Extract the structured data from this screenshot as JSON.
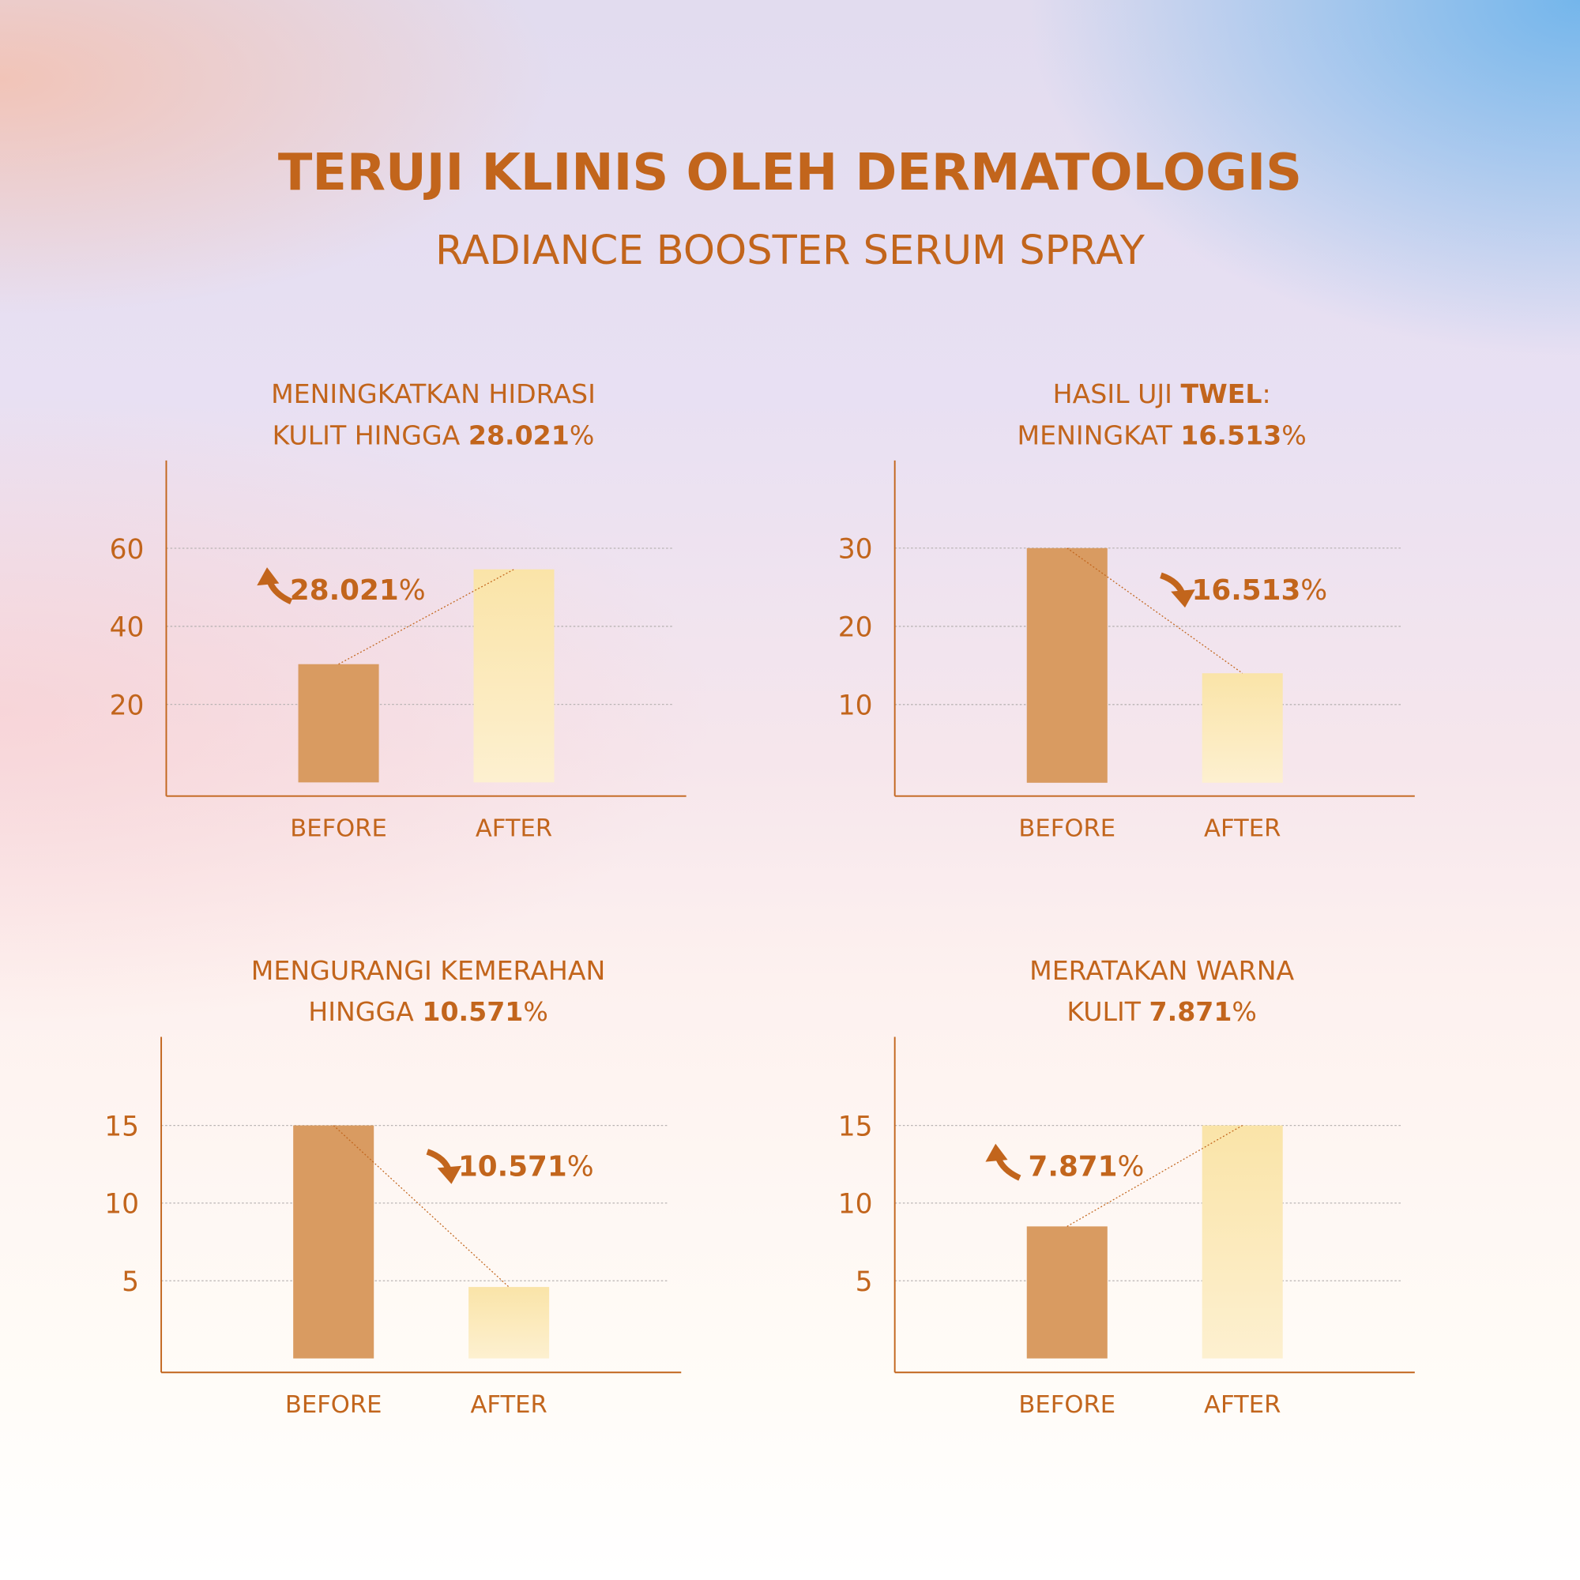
{
  "header": {
    "title": "TERUJI KLINIS OLEH DERMATOLOGIS",
    "subtitle": "RADIANCE BOOSTER SERUM SPRAY"
  },
  "chart_data": [
    {
      "type": "bar",
      "title": [
        [
          {
            "text": "MENINGKATKAN HIDRASI"
          }
        ],
        [
          {
            "text": "KULIT HINGGA "
          },
          {
            "text": "28.021",
            "bold": true
          },
          {
            "text": "%"
          }
        ]
      ],
      "categories": [
        "BEFORE",
        "AFTER"
      ],
      "values": [
        30.3,
        54.6
      ],
      "colors": [
        "#d99b61",
        "#fae4a8"
      ],
      "ylim": [
        -3.5,
        82.5
      ],
      "yticks": [
        20,
        40,
        60
      ],
      "grid": true,
      "annotation": [
        {
          "text": "28.021",
          "bold": true
        },
        {
          "text": "%"
        }
      ],
      "trend": "up"
    },
    {
      "type": "bar",
      "title": [
        [
          {
            "text": "HASIL UJI "
          },
          {
            "text": "TWEL",
            "bold": true
          },
          {
            "text": ":"
          }
        ],
        [
          {
            "text": "MENINGKAT "
          },
          {
            "text": "16.513",
            "bold": true
          },
          {
            "text": "%"
          }
        ]
      ],
      "categories": [
        "BEFORE",
        "AFTER"
      ],
      "values": [
        30,
        14
      ],
      "colors": [
        "#d99b61",
        "#fae4a8"
      ],
      "ylim": [
        -1.7,
        41.2
      ],
      "yticks": [
        10,
        20,
        30
      ],
      "grid": true,
      "annotation": [
        {
          "text": "16.513",
          "bold": true
        },
        {
          "text": "%"
        }
      ],
      "trend": "down"
    },
    {
      "type": "bar",
      "title": [
        [
          {
            "text": "MENGURANGI KEMERAHAN"
          }
        ],
        [
          {
            "text": "HINGGA "
          },
          {
            "text": "10.571",
            "bold": true
          },
          {
            "text": "%"
          }
        ]
      ],
      "categories": [
        "BEFORE",
        "AFTER"
      ],
      "values": [
        15,
        4.6
      ],
      "colors": [
        "#d99b61",
        "#fae4a8"
      ],
      "ylim": [
        -0.9,
        20.7
      ],
      "yticks": [
        5,
        10,
        15
      ],
      "grid": true,
      "annotation": [
        {
          "text": "10.571",
          "bold": true
        },
        {
          "text": "%"
        }
      ],
      "trend": "down"
    },
    {
      "type": "bar",
      "title": [
        [
          {
            "text": "MERATAKAN WARNA"
          }
        ],
        [
          {
            "text": "KULIT "
          },
          {
            "text": "7.871",
            "bold": true
          },
          {
            "text": "%"
          }
        ]
      ],
      "categories": [
        "BEFORE",
        "AFTER"
      ],
      "values": [
        8.5,
        15
      ],
      "colors": [
        "#d99b61",
        "#fae4a8"
      ],
      "ylim": [
        -0.9,
        20.7
      ],
      "yticks": [
        5,
        10,
        15
      ],
      "grid": true,
      "annotation": [
        {
          "text": "7.871",
          "bold": true
        },
        {
          "text": "%"
        }
      ],
      "trend": "up"
    }
  ]
}
